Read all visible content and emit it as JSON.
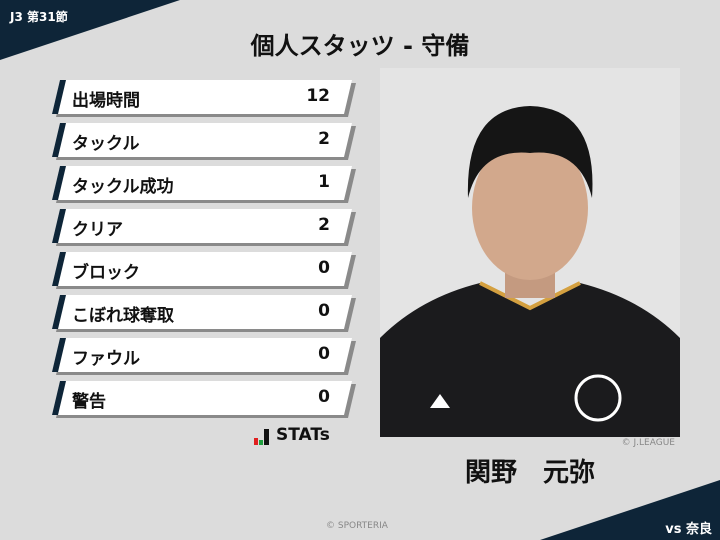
{
  "header": {
    "round": "J3 第31節",
    "title": "個人スタッツ - 守備"
  },
  "colors": {
    "navy": "#0e2538",
    "background": "#dcdcdc"
  },
  "stats": [
    {
      "label": "出場時間",
      "value": "12"
    },
    {
      "label": "タックル",
      "value": "2"
    },
    {
      "label": "タックル成功",
      "value": "1"
    },
    {
      "label": "クリア",
      "value": "2"
    },
    {
      "label": "ブロック",
      "value": "0"
    },
    {
      "label": "こぼれ球奪取",
      "value": "0"
    },
    {
      "label": "ファウル",
      "value": "0"
    },
    {
      "label": "警告",
      "value": "0"
    }
  ],
  "brand": {
    "logo_text": "STATs"
  },
  "player": {
    "name": "関野　元弥",
    "photo_credit": "© J.LEAGUE"
  },
  "footer": {
    "copyright": "© SPORTERIA",
    "opponent": "vs 奈良"
  }
}
